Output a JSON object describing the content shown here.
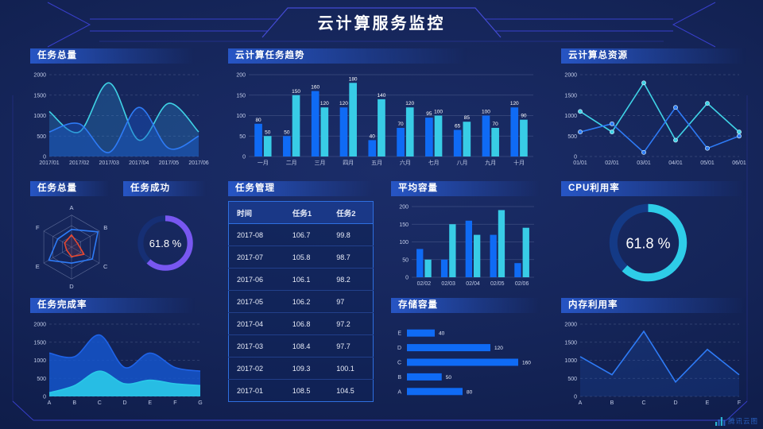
{
  "header": {
    "title": "云计算服务监控"
  },
  "footer": {
    "logo_text": "腾讯云图"
  },
  "colors": {
    "background": "#13255a",
    "frame_line": "#3d43d8",
    "panel_header": "#2858ca",
    "bar_blue": "#0f6bf5",
    "bar_cyan": "#38cce6",
    "line_blue": "#2e7bf6",
    "line_cyan": "#3fd3e6",
    "gauge_purple": "#7857f0",
    "gauge_cyan": "#2ecde8",
    "radar_red": "#e8472f"
  },
  "chart_data": [
    {
      "id": "task-total-line",
      "type": "line",
      "title": "任务总量",
      "x": [
        "2017/01",
        "2017/02",
        "2017/03",
        "2017/04",
        "2017/05",
        "2017/06"
      ],
      "ylim": [
        0,
        2000
      ],
      "yticks": [
        0,
        500,
        1000,
        1500,
        2000
      ],
      "grid": "dash",
      "series": [
        {
          "name": "series-cyan",
          "color": "#3fd3e6",
          "smooth": true,
          "area": "rgba(46,150,220,0.28)",
          "values": [
            1100,
            600,
            1800,
            400,
            1300,
            600
          ]
        },
        {
          "name": "series-blue",
          "color": "#2e7bf6",
          "smooth": true,
          "area": "rgba(25,85,200,0.42)",
          "values": [
            600,
            800,
            100,
            1200,
            200,
            500
          ]
        }
      ]
    },
    {
      "id": "cloud-task-trend",
      "type": "bar",
      "title": "云计算任务趋势",
      "x": [
        "一月",
        "二月",
        "三月",
        "四月",
        "五月",
        "六月",
        "七月",
        "八月",
        "九月",
        "十月"
      ],
      "ylim": [
        0,
        200
      ],
      "yticks": [
        0,
        50,
        100,
        150,
        200
      ],
      "grid": "solid",
      "value_labels": true,
      "series": [
        {
          "name": "series-blue",
          "color": "#0f6bf5",
          "values": [
            80,
            50,
            160,
            120,
            40,
            70,
            95,
            65,
            100,
            120
          ]
        },
        {
          "name": "series-cyan",
          "color": "#38cce6",
          "values": [
            50,
            150,
            120,
            180,
            140,
            120,
            100,
            85,
            70,
            90
          ]
        }
      ]
    },
    {
      "id": "cloud-total-resource",
      "type": "line",
      "title": "云计算总资源",
      "x": [
        "01/01",
        "02/01",
        "03/01",
        "04/01",
        "05/01",
        "06/01"
      ],
      "ylim": [
        0,
        2000
      ],
      "yticks": [
        0,
        500,
        1000,
        1500,
        2000
      ],
      "grid": "dash",
      "series": [
        {
          "name": "series-cyan",
          "color": "#3fd3e6",
          "markers": true,
          "values": [
            1100,
            600,
            1800,
            400,
            1300,
            600
          ]
        },
        {
          "name": "series-blue",
          "color": "#2e7bf6",
          "markers": true,
          "values": [
            600,
            800,
            100,
            1200,
            200,
            500
          ]
        }
      ]
    },
    {
      "id": "task-total-radar",
      "type": "radar",
      "title": "任务总量",
      "axes": [
        "A",
        "B",
        "C",
        "D",
        "E",
        "F"
      ],
      "levels": 3,
      "series": [
        {
          "name": "radar-blue",
          "color": "#2e7bf6",
          "fill": "none",
          "values": [
            0.55,
            0.95,
            0.75,
            0.5,
            0.82,
            0.5
          ]
        },
        {
          "name": "radar-red",
          "color": "#e8472f",
          "fill": "rgba(232,71,47,0.12)",
          "values": [
            0.38,
            0.22,
            0.45,
            0.3,
            0.18,
            0.25
          ]
        }
      ]
    },
    {
      "id": "task-success-gauge",
      "type": "gauge",
      "title": "任务成功",
      "value": 61.8,
      "unit": "%",
      "color": "#7857f0",
      "track": "#162f74"
    },
    {
      "id": "task-table",
      "type": "table",
      "title": "任务管理",
      "columns": [
        "时间",
        "任务1",
        "任务2"
      ],
      "rows": [
        [
          "2017-08",
          "106.7",
          "99.8"
        ],
        [
          "2017-07",
          "105.8",
          "98.7"
        ],
        [
          "2017-06",
          "106.1",
          "98.2"
        ],
        [
          "2017-05",
          "106.2",
          "97"
        ],
        [
          "2017-04",
          "106.8",
          "97.2"
        ],
        [
          "2017-03",
          "108.4",
          "97.7"
        ],
        [
          "2017-02",
          "109.3",
          "100.1"
        ],
        [
          "2017-01",
          "108.5",
          "104.5"
        ]
      ]
    },
    {
      "id": "avg-capacity",
      "type": "bar",
      "title": "平均容量",
      "x": [
        "02/02",
        "02/03",
        "02/04",
        "02/05",
        "02/06"
      ],
      "ylim": [
        0,
        200
      ],
      "yticks": [
        0,
        50,
        100,
        150,
        200
      ],
      "grid": "solid",
      "value_labels": false,
      "series": [
        {
          "name": "series-blue",
          "color": "#0f6bf5",
          "values": [
            80,
            50,
            160,
            120,
            40
          ]
        },
        {
          "name": "series-cyan",
          "color": "#38cce6",
          "values": [
            50,
            150,
            120,
            190,
            140
          ]
        }
      ]
    },
    {
      "id": "cpu-util-gauge",
      "type": "gauge",
      "title": "CPU利用率",
      "value": 61.8,
      "unit": "%",
      "color": "#2ecde8",
      "track": "#143a86"
    },
    {
      "id": "task-completion",
      "type": "line",
      "title": "任务完成率",
      "x": [
        "A",
        "B",
        "C",
        "D",
        "E",
        "F",
        "G"
      ],
      "ylim": [
        0,
        2000
      ],
      "yticks": [
        0,
        500,
        1000,
        1500,
        2000
      ],
      "grid": "dash",
      "series": [
        {
          "name": "area-blue",
          "color": "#1f63e8",
          "smooth": true,
          "area": "rgba(21,90,215,0.78)",
          "values": [
            1200,
            1100,
            1700,
            800,
            1200,
            800,
            700
          ]
        },
        {
          "name": "area-cyan",
          "color": "#29c8e8",
          "smooth": true,
          "area": "rgba(41,200,232,0.92)",
          "values": [
            100,
            300,
            700,
            350,
            450,
            350,
            300
          ]
        }
      ]
    },
    {
      "id": "storage-capacity",
      "type": "hbar",
      "title": "存储容量",
      "categories": [
        "E",
        "D",
        "C",
        "B",
        "A"
      ],
      "values": [
        40,
        120,
        160,
        50,
        80
      ],
      "max": 160,
      "color": "#0f6bf5"
    },
    {
      "id": "memory-util",
      "type": "line",
      "title": "内存利用率",
      "x": [
        "A",
        "B",
        "C",
        "D",
        "E",
        "F"
      ],
      "ylim": [
        0,
        2000
      ],
      "yticks": [
        0,
        500,
        1000,
        1500,
        2000
      ],
      "grid": "dash",
      "series": [
        {
          "name": "series-blue",
          "color": "#2e7bf6",
          "smooth": false,
          "area": "rgba(30,90,200,0.20)",
          "values": [
            1100,
            600,
            1800,
            400,
            1300,
            600
          ]
        }
      ]
    }
  ]
}
